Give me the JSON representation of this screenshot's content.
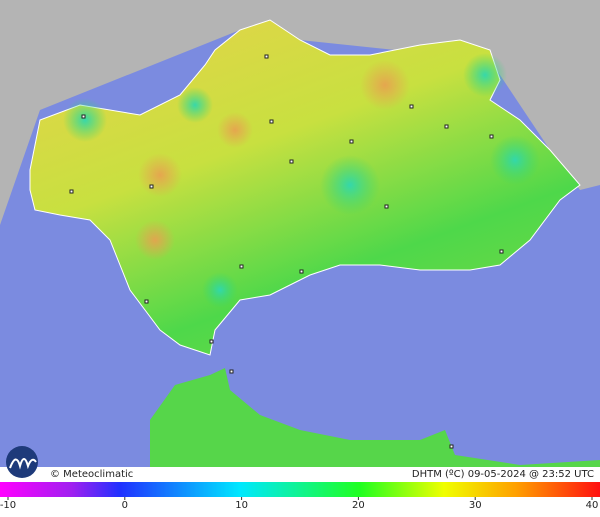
{
  "brand": "© Meteoclimatic",
  "caption": "DHTM (ºC) 09-05-2024 @ 23:52 UTC",
  "scale": {
    "min": -10,
    "max": 40,
    "ticks": [
      -10,
      0,
      10,
      20,
      30,
      40
    ]
  }
}
